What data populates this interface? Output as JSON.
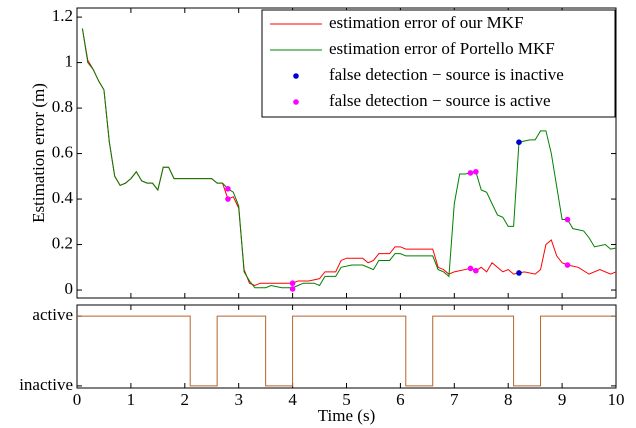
{
  "chart_data": [
    {
      "type": "line",
      "ylabel": "Estimation error (m)",
      "xlim": [
        0,
        10
      ],
      "xticks": [
        0,
        1,
        2,
        3,
        4,
        5,
        6,
        7,
        8,
        9,
        10
      ],
      "ylim": [
        -0.035,
        1.24
      ],
      "yticks": [
        0,
        0.2,
        0.4,
        0.6,
        0.8,
        1,
        1.2
      ],
      "legend": "upper right",
      "series": [
        {
          "name": "estimation error of our MKF",
          "color": "#ff0000",
          "x": [
            0.1,
            0.2,
            0.3,
            0.4,
            0.5,
            0.6,
            0.7,
            0.8,
            0.9,
            1.0,
            1.1,
            1.2,
            1.3,
            1.4,
            1.5,
            1.6,
            1.7,
            1.8,
            1.9,
            2.0,
            2.5,
            2.6,
            2.7,
            2.8,
            2.9,
            3.0,
            3.1,
            3.2,
            3.3,
            3.4,
            3.5,
            3.7,
            3.8,
            4.0,
            4.1,
            4.3,
            4.5,
            4.6,
            4.8,
            4.9,
            5.0,
            5.3,
            5.4,
            5.5,
            5.6,
            5.8,
            5.9,
            6.0,
            6.1,
            6.6,
            6.7,
            6.8,
            6.9,
            7.0,
            7.2,
            7.3,
            7.4,
            7.5,
            7.6,
            7.7,
            7.8,
            7.9,
            8.0,
            8.1,
            8.2,
            8.3,
            8.5,
            8.6,
            8.7,
            8.8,
            8.9,
            9.0,
            9.1,
            9.3,
            9.5,
            9.7,
            9.9,
            10
          ],
          "values": [
            1.15,
            1.01,
            0.97,
            0.92,
            0.88,
            0.65,
            0.5,
            0.46,
            0.47,
            0.49,
            0.52,
            0.48,
            0.47,
            0.47,
            0.44,
            0.54,
            0.54,
            0.49,
            0.49,
            0.49,
            0.49,
            0.47,
            0.47,
            0.4,
            0.41,
            0.36,
            0.09,
            0.03,
            0.02,
            0.03,
            0.03,
            0.03,
            0.03,
            0.03,
            0.04,
            0.04,
            0.05,
            0.08,
            0.08,
            0.13,
            0.14,
            0.14,
            0.12,
            0.13,
            0.16,
            0.16,
            0.19,
            0.19,
            0.18,
            0.18,
            0.1,
            0.09,
            0.07,
            0.08,
            0.09,
            0.095,
            0.085,
            0.1,
            0.08,
            0.12,
            0.1,
            0.08,
            0.09,
            0.07,
            0.075,
            0.08,
            0.07,
            0.09,
            0.2,
            0.22,
            0.15,
            0.12,
            0.11,
            0.1,
            0.07,
            0.09,
            0.07,
            0.08
          ]
        },
        {
          "name": "estimation error of Portello MKF",
          "color": "#008000",
          "x": [
            0.1,
            0.2,
            0.3,
            0.4,
            0.5,
            0.6,
            0.7,
            0.8,
            0.9,
            1.0,
            1.1,
            1.2,
            1.3,
            1.4,
            1.5,
            1.6,
            1.7,
            1.8,
            1.9,
            2.0,
            2.5,
            2.6,
            2.7,
            2.8,
            2.9,
            3.0,
            3.1,
            3.2,
            3.3,
            3.5,
            3.6,
            3.8,
            4.0,
            4.1,
            4.2,
            4.4,
            4.5,
            4.6,
            4.8,
            4.9,
            5.1,
            5.3,
            5.5,
            5.6,
            5.8,
            5.9,
            6.0,
            6.1,
            6.6,
            6.7,
            6.8,
            6.9,
            7.0,
            7.1,
            7.2,
            7.3,
            7.4,
            7.5,
            7.6,
            7.8,
            7.9,
            8.0,
            8.1,
            8.2,
            8.4,
            8.5,
            8.6,
            8.7,
            8.8,
            9.0,
            9.1,
            9.2,
            9.4,
            9.5,
            9.6,
            9.8,
            9.9,
            10
          ],
          "values": [
            1.15,
            1.0,
            0.97,
            0.92,
            0.88,
            0.65,
            0.5,
            0.46,
            0.47,
            0.49,
            0.52,
            0.48,
            0.47,
            0.47,
            0.44,
            0.54,
            0.54,
            0.49,
            0.49,
            0.49,
            0.49,
            0.47,
            0.47,
            0.445,
            0.43,
            0.37,
            0.08,
            0.04,
            0.01,
            0.01,
            0.02,
            0.01,
            0.01,
            0.02,
            0.03,
            0.03,
            0.02,
            0.06,
            0.06,
            0.1,
            0.11,
            0.11,
            0.09,
            0.13,
            0.13,
            0.16,
            0.16,
            0.15,
            0.15,
            0.09,
            0.08,
            0.06,
            0.38,
            0.51,
            0.51,
            0.515,
            0.52,
            0.44,
            0.43,
            0.33,
            0.32,
            0.28,
            0.28,
            0.65,
            0.66,
            0.66,
            0.7,
            0.7,
            0.6,
            0.31,
            0.31,
            0.27,
            0.26,
            0.23,
            0.19,
            0.2,
            0.18,
            0.185
          ]
        },
        {
          "name": "false detection − source is inactive",
          "color": "#0000cc",
          "type": "scatter",
          "x": [
            8.2,
            8.2
          ],
          "values": [
            0.65,
            0.075
          ]
        },
        {
          "name": "false detection − source is active",
          "color": "#ff00ff",
          "type": "scatter",
          "x": [
            2.8,
            2.8,
            4.0,
            4.0,
            7.3,
            7.4,
            7.3,
            7.4,
            9.1,
            9.1
          ],
          "values": [
            0.445,
            0.4,
            0.03,
            0.005,
            0.515,
            0.52,
            0.095,
            0.085,
            0.31,
            0.11
          ]
        }
      ]
    },
    {
      "type": "line",
      "xlabel": "Time (s)",
      "xlim": [
        0,
        10
      ],
      "xticks": [
        0,
        1,
        2,
        3,
        4,
        5,
        6,
        7,
        8,
        9,
        10
      ],
      "ylim": [
        -0.03,
        1.16
      ],
      "yticks": [
        {
          "value": 0,
          "label": "inactive"
        },
        {
          "value": 1,
          "label": "active"
        }
      ],
      "series": [
        {
          "color": "#b4642d",
          "x": [
            0,
            2.1,
            2.1,
            2.6,
            2.6,
            3.5,
            3.5,
            4,
            4,
            6.1,
            6.1,
            6.6,
            6.6,
            8.1,
            8.1,
            8.6,
            8.6,
            10
          ],
          "values": [
            1,
            1,
            0,
            0,
            1,
            1,
            0,
            0,
            1,
            1,
            0,
            0,
            1,
            1,
            0,
            0,
            1,
            1
          ]
        }
      ]
    }
  ]
}
